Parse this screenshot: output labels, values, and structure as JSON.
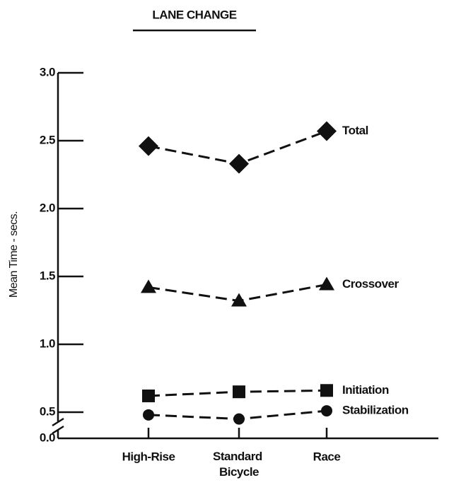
{
  "chart_data": {
    "type": "line",
    "title": "LANE CHANGE",
    "y_label": "Mean Time - secs.",
    "categories": [
      "High-Rise",
      "Standard Bicycle",
      "Race"
    ],
    "series": [
      {
        "name": "Total",
        "marker": "diamond",
        "color": "#111111",
        "values": [
          2.46,
          2.33,
          2.57
        ]
      },
      {
        "name": "Crossover",
        "marker": "triangle",
        "color": "#111111",
        "values": [
          1.42,
          1.32,
          1.44
        ]
      },
      {
        "name": "Initiation",
        "marker": "square",
        "color": "#111111",
        "values": [
          0.62,
          0.65,
          0.66
        ]
      },
      {
        "name": "Stabilization",
        "marker": "circle",
        "color": "#111111",
        "values": [
          0.48,
          0.45,
          0.51
        ]
      }
    ],
    "ylim": [
      0,
      3.0
    ],
    "axis_break": [
      0,
      0.4
    ],
    "yticks": [
      {
        "value": 0,
        "label": "0.0"
      },
      {
        "value": 0.5,
        "label": "0.5"
      },
      {
        "value": 1,
        "label": "1.0"
      },
      {
        "value": 1.5,
        "label": "1.5"
      },
      {
        "value": 2,
        "label": "2.0"
      },
      {
        "value": 2.5,
        "label": "2.5"
      },
      {
        "value": 3,
        "label": "3.0"
      }
    ],
    "line_style": "dashed"
  }
}
